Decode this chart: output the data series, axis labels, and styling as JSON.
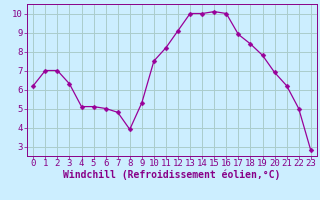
{
  "x": [
    0,
    1,
    2,
    3,
    4,
    5,
    6,
    7,
    8,
    9,
    10,
    11,
    12,
    13,
    14,
    15,
    16,
    17,
    18,
    19,
    20,
    21,
    22,
    23
  ],
  "y": [
    6.2,
    7.0,
    7.0,
    6.3,
    5.1,
    5.1,
    5.0,
    4.8,
    3.9,
    5.3,
    7.5,
    8.2,
    9.1,
    10.0,
    10.0,
    10.1,
    10.0,
    8.9,
    8.4,
    7.8,
    6.9,
    6.2,
    5.0,
    2.8
  ],
  "line_color": "#990099",
  "marker": "D",
  "marker_size": 2.5,
  "bg_color": "#cceeff",
  "grid_color": "#aacccc",
  "xlabel": "Windchill (Refroidissement éolien,°C)",
  "ylim": [
    2.5,
    10.5
  ],
  "xlim": [
    -0.5,
    23.5
  ],
  "yticks": [
    3,
    4,
    5,
    6,
    7,
    8,
    9,
    10
  ],
  "xticks": [
    0,
    1,
    2,
    3,
    4,
    5,
    6,
    7,
    8,
    9,
    10,
    11,
    12,
    13,
    14,
    15,
    16,
    17,
    18,
    19,
    20,
    21,
    22,
    23
  ],
  "tick_color": "#880088",
  "label_color": "#880088",
  "axis_color": "#880088",
  "font_size": 6.5,
  "xlabel_font_size": 7
}
